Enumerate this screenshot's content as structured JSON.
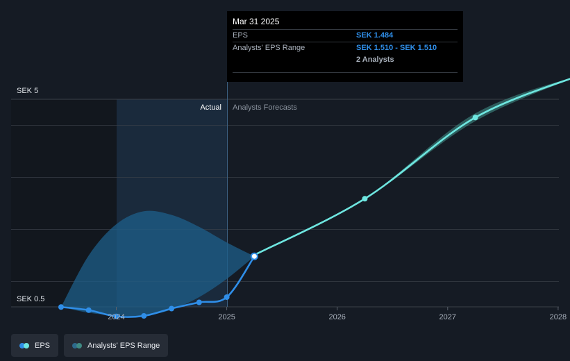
{
  "chart_data": {
    "type": "line",
    "currency": "SEK",
    "y_tick_labels": [
      "SEK 5",
      "SEK 0.5"
    ],
    "ylim": [
      0.5,
      5.0
    ],
    "x_tick_labels": [
      "2024",
      "2025",
      "2026",
      "2027",
      "2028"
    ],
    "xlim": [
      2023.45,
      2028.25
    ],
    "region_labels": {
      "actual": "Actual",
      "forecast": "Analysts Forecasts"
    },
    "grid": true,
    "legend": [
      {
        "label": "EPS",
        "colors": [
          "#2f8ee8",
          "#6ee6e0"
        ]
      },
      {
        "label": "Analysts' EPS Range",
        "colors": [
          "#2d6a8c",
          "#3f8a83"
        ]
      }
    ],
    "series": [
      {
        "name": "EPS",
        "role": "actual",
        "color": "#2f8ee8",
        "x": [
          2023.5,
          2023.75,
          2024.0,
          2024.25,
          2024.5,
          2024.75,
          2025.0,
          2025.25
        ],
        "y": [
          0.51,
          0.45,
          0.33,
          0.34,
          0.48,
          0.6,
          0.7,
          1.484
        ]
      },
      {
        "name": "EPS",
        "role": "forecast",
        "color": "#6ee6e0",
        "x": [
          2025.25,
          2026.25,
          2027.25,
          2028.25
        ],
        "y": [
          1.51,
          2.59,
          4.15,
          5.0
        ]
      },
      {
        "name": "Analysts' EPS Range",
        "role": "historical range",
        "color": "#1e5f8a",
        "x": [
          2023.5,
          2023.75,
          2024.0,
          2024.25,
          2024.5,
          2024.75,
          2025.0,
          2025.25
        ],
        "upper": [
          0.51,
          1.5,
          2.1,
          2.35,
          2.28,
          2.05,
          1.75,
          1.484
        ],
        "lower": [
          0.51,
          0.4,
          0.35,
          0.34,
          0.46,
          0.7,
          1.05,
          1.484
        ]
      },
      {
        "name": "Analysts' EPS Range",
        "role": "forecast range",
        "color": "#3f8a83",
        "x": [
          2025.25,
          2026.25,
          2027.25,
          2028.25
        ],
        "upper": [
          1.51,
          2.6,
          4.23,
          5.0
        ],
        "lower": [
          1.51,
          2.58,
          4.08,
          5.0
        ]
      }
    ]
  },
  "tooltip": {
    "date": "Mar 31 2025",
    "eps_label": "EPS",
    "eps_value": "SEK 1.484",
    "range_label": "Analysts' EPS Range",
    "range_value": "SEK 1.510 - SEK 1.510",
    "analysts": "2 Analysts"
  },
  "colors": {
    "background": "#151b24",
    "actual_area": "#1a2a3c",
    "grid": "#3a4049",
    "accent_blue": "#2f8ee8",
    "accent_cyan": "#6ee6e0"
  }
}
